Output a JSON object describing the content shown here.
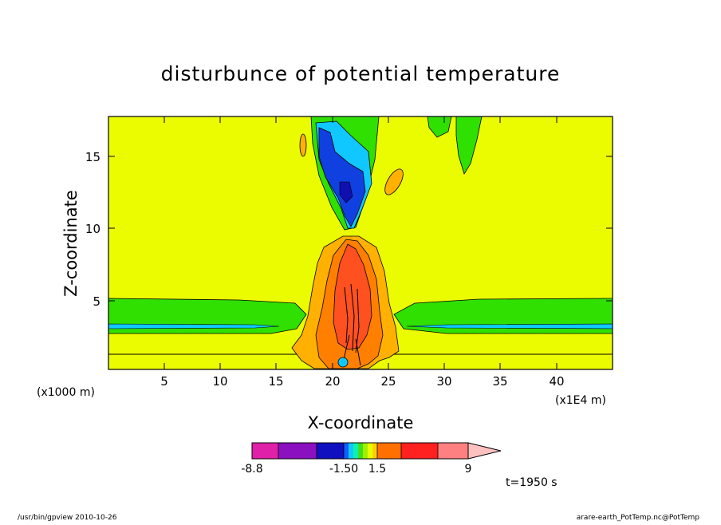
{
  "chart_data": {
    "type": "heatmap",
    "title": "disturbunce of potential temperature",
    "xlabel": "X-coordinate",
    "ylabel": "Z-coordinate",
    "x_unit": "(x1E4 m)",
    "y_unit": "(x1000 m)",
    "xlim": [
      0,
      45
    ],
    "ylim": [
      0,
      17.5
    ],
    "x_ticks": [
      "5",
      "10",
      "15",
      "20",
      "25",
      "30",
      "35",
      "40"
    ],
    "y_ticks": [
      "5",
      "10",
      "15"
    ],
    "colorbar": {
      "labels": [
        "-8.8",
        "-1.50",
        "1.5",
        "9"
      ],
      "colors": [
        "#e020a8",
        "#8a10c0",
        "#1010c0",
        "#1060ff",
        "#10c8ff",
        "#10f0b0",
        "#40e020",
        "#a0f000",
        "#e8ff00",
        "#ffd000",
        "#ffa000",
        "#ff7000",
        "#ff2020",
        "#ff8080"
      ],
      "extend_color": "#ffc0c0"
    },
    "annotation": "t=1950 s"
  },
  "footer": {
    "left": "/usr/bin/gpview   2010-10-26",
    "right": "arare-earth_PotTemp.nc@PotTemp"
  },
  "palette": {
    "background": "#ecfc00",
    "green": "#30e000",
    "cyan": "#10c8ff",
    "blue": "#1040e0",
    "darkblue": "#1010b0",
    "gold": "#ffb000",
    "orange": "#ff8000",
    "redorange": "#ff5020"
  }
}
